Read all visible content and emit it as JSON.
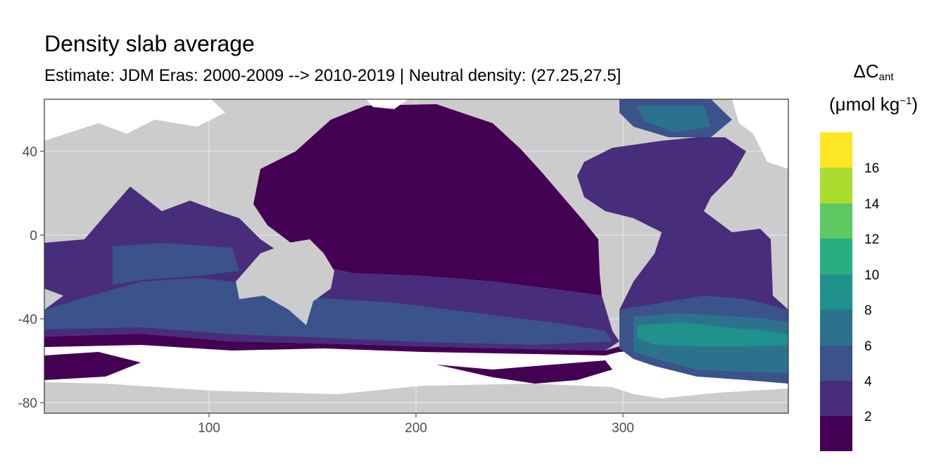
{
  "title": "Density slab average",
  "subtitle": "Estimate: JDM Eras: 2000-2009 --> 2010-2019 | Neutral density: (27.25,27.5]",
  "legend": {
    "title_symbol": "ΔC",
    "title_subscript": "ant",
    "unit_open": "(μmol kg",
    "unit_superscript": "−1",
    "unit_close": ")",
    "breaks": [
      "2",
      "4",
      "6",
      "8",
      "10",
      "12",
      "14",
      "16"
    ],
    "colors": [
      "#440154",
      "#472d7b",
      "#3b528b",
      "#2c728e",
      "#21918c",
      "#28ae80",
      "#5ec962",
      "#addc30",
      "#fde725"
    ]
  },
  "axes": {
    "x_ticks": [
      "100",
      "200",
      "300"
    ],
    "y_ticks": [
      "40",
      "0",
      "-40",
      "-80"
    ],
    "x_range": [
      20,
      380
    ],
    "y_range": [
      -85,
      65
    ]
  },
  "colors": {
    "land": "#cccccc",
    "no_data": "#ffffff",
    "grid": "#ebebeb",
    "panel_border": "#333333"
  }
}
